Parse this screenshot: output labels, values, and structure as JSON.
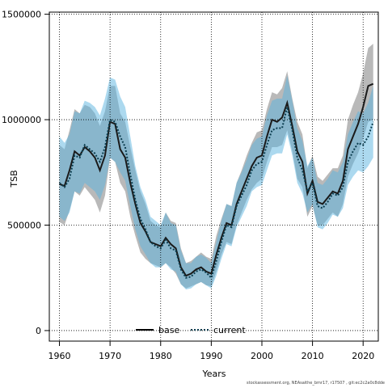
{
  "chart_data": {
    "type": "line",
    "xlabel": "Years",
    "ylabel": "TSB",
    "xlim": [
      1958,
      2023
    ],
    "ylim": [
      -50000,
      1510000
    ],
    "xticks": [
      1960,
      1970,
      1980,
      1990,
      2000,
      2010,
      2020
    ],
    "yticks": [
      0,
      500000,
      1000000,
      1500000
    ],
    "grid": true,
    "legend_position": "bottom-center",
    "x": [
      1960,
      1961,
      1962,
      1963,
      1964,
      1965,
      1966,
      1967,
      1968,
      1969,
      1970,
      1971,
      1972,
      1973,
      1974,
      1975,
      1976,
      1977,
      1978,
      1979,
      1980,
      1981,
      1982,
      1983,
      1984,
      1985,
      1986,
      1987,
      1988,
      1989,
      1990,
      1991,
      1992,
      1993,
      1994,
      1995,
      1996,
      1997,
      1998,
      1999,
      2000,
      2001,
      2002,
      2003,
      2004,
      2005,
      2006,
      2007,
      2008,
      2009,
      2010,
      2011,
      2012,
      2013,
      2014,
      2015,
      2016,
      2017,
      2018,
      2019,
      2020,
      2021,
      2022
    ],
    "series": [
      {
        "name": "base",
        "color": "#1a1a1a",
        "band_color": "#a8a8a8",
        "values": [
          695000,
          685000,
          760000,
          850000,
          830000,
          870000,
          850000,
          820000,
          760000,
          830000,
          990000,
          980000,
          860000,
          820000,
          700000,
          600000,
          510000,
          470000,
          420000,
          410000,
          400000,
          440000,
          410000,
          390000,
          300000,
          260000,
          270000,
          290000,
          300000,
          280000,
          270000,
          360000,
          440000,
          510000,
          500000,
          600000,
          660000,
          720000,
          780000,
          820000,
          830000,
          920000,
          1000000,
          990000,
          1010000,
          1080000,
          970000,
          850000,
          800000,
          650000,
          710000,
          610000,
          600000,
          630000,
          660000,
          650000,
          710000,
          860000,
          920000,
          980000,
          1060000,
          1160000,
          1170000
        ],
        "lower": [
          515000,
          500000,
          570000,
          660000,
          640000,
          680000,
          650000,
          620000,
          560000,
          640000,
          820000,
          800000,
          700000,
          660000,
          540000,
          450000,
          370000,
          340000,
          320000,
          310000,
          300000,
          320000,
          300000,
          270000,
          220000,
          200000,
          210000,
          220000,
          230000,
          215000,
          210000,
          280000,
          360000,
          420000,
          410000,
          500000,
          560000,
          620000,
          670000,
          700000,
          720000,
          800000,
          870000,
          870000,
          880000,
          950000,
          850000,
          720000,
          680000,
          540000,
          590000,
          500000,
          500000,
          530000,
          560000,
          540000,
          600000,
          730000,
          790000,
          840000,
          910000,
          990000,
          1000000
        ],
        "upper": [
          880000,
          860000,
          950000,
          1050000,
          1030000,
          1070000,
          1060000,
          1030000,
          970000,
          1040000,
          1160000,
          1160000,
          1030000,
          990000,
          870000,
          760000,
          660000,
          600000,
          520000,
          500000,
          490000,
          560000,
          520000,
          510000,
          390000,
          320000,
          330000,
          350000,
          370000,
          350000,
          340000,
          450000,
          530000,
          600000,
          590000,
          700000,
          760000,
          830000,
          890000,
          940000,
          950000,
          1050000,
          1130000,
          1120000,
          1150000,
          1230000,
          1100000,
          990000,
          930000,
          770000,
          830000,
          730000,
          710000,
          740000,
          770000,
          770000,
          830000,
          1000000,
          1070000,
          1130000,
          1220000,
          1340000,
          1360000
        ]
      },
      {
        "name": "current",
        "color": "#0b3d4f",
        "band_color": "#5ab3e0",
        "values": [
          700000,
          680000,
          720000,
          830000,
          820000,
          880000,
          860000,
          840000,
          800000,
          870000,
          1000000,
          990000,
          920000,
          870000,
          740000,
          620000,
          530000,
          480000,
          420000,
          400000,
          390000,
          430000,
          390000,
          380000,
          290000,
          250000,
          255000,
          280000,
          290000,
          275000,
          250000,
          330000,
          420000,
          500000,
          490000,
          590000,
          640000,
          690000,
          760000,
          790000,
          800000,
          880000,
          950000,
          960000,
          960000,
          1060000,
          950000,
          820000,
          760000,
          660000,
          700000,
          590000,
          580000,
          610000,
          650000,
          640000,
          680000,
          800000,
          850000,
          890000,
          880000,
          920000,
          990000
        ],
        "lower": [
          540000,
          520000,
          560000,
          660000,
          650000,
          700000,
          680000,
          660000,
          620000,
          690000,
          820000,
          800000,
          750000,
          710000,
          590000,
          480000,
          400000,
          360000,
          320000,
          300000,
          300000,
          320000,
          290000,
          280000,
          220000,
          195000,
          200000,
          220000,
          230000,
          215000,
          200000,
          260000,
          340000,
          410000,
          400000,
          490000,
          540000,
          590000,
          660000,
          680000,
          690000,
          760000,
          830000,
          840000,
          840000,
          930000,
          830000,
          700000,
          650000,
          560000,
          600000,
          490000,
          480000,
          510000,
          550000,
          540000,
          580000,
          690000,
          730000,
          760000,
          750000,
          780000,
          820000
        ],
        "upper": [
          920000,
          890000,
          930000,
          1040000,
          1030000,
          1090000,
          1080000,
          1060000,
          1020000,
          1100000,
          1200000,
          1190000,
          1110000,
          1060000,
          920000,
          780000,
          680000,
          620000,
          540000,
          520000,
          500000,
          560000,
          510000,
          500000,
          380000,
          320000,
          320000,
          350000,
          360000,
          345000,
          320000,
          420000,
          520000,
          600000,
          590000,
          700000,
          750000,
          810000,
          880000,
          910000,
          920000,
          1020000,
          1090000,
          1100000,
          1100000,
          1210000,
          1090000,
          960000,
          900000,
          780000,
          820000,
          700000,
          690000,
          720000,
          760000,
          750000,
          800000,
          930000,
          990000,
          1040000,
          1030000,
          1080000,
          1160000
        ]
      }
    ]
  },
  "footer_note": "stockassessment.org, NEAsaithe_bmr17, r17507 , git:ec2c2a0c8dde"
}
